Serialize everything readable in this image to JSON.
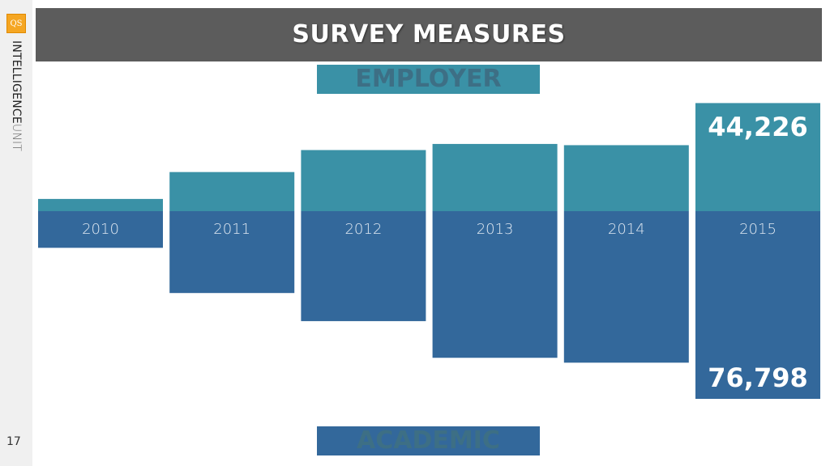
{
  "slide": {
    "title": "SURVEY MEASURES",
    "page_number": "17",
    "brand_bold": "INTELLIGENCE",
    "brand_light": "UNIT",
    "logo_text": "QS"
  },
  "labels": {
    "employer": "EMPLOYER",
    "academic": "ACADEMIC"
  },
  "colors": {
    "employer": "#3a91a6",
    "academic": "#33689b",
    "header": "#5c5c5c"
  },
  "chart_data": {
    "type": "bar",
    "categories": [
      "2010",
      "2011",
      "2012",
      "2013",
      "2014",
      "2015"
    ],
    "series": [
      {
        "name": "EMPLOYER",
        "values": [
          5000,
          16000,
          25000,
          27500,
          27000,
          44226
        ]
      },
      {
        "name": "ACADEMIC",
        "values": [
          15000,
          33500,
          45000,
          60000,
          62000,
          76798
        ]
      }
    ],
    "data_labels": {
      "employer_2015": "44,226",
      "academic_2015": "76,798"
    }
  }
}
